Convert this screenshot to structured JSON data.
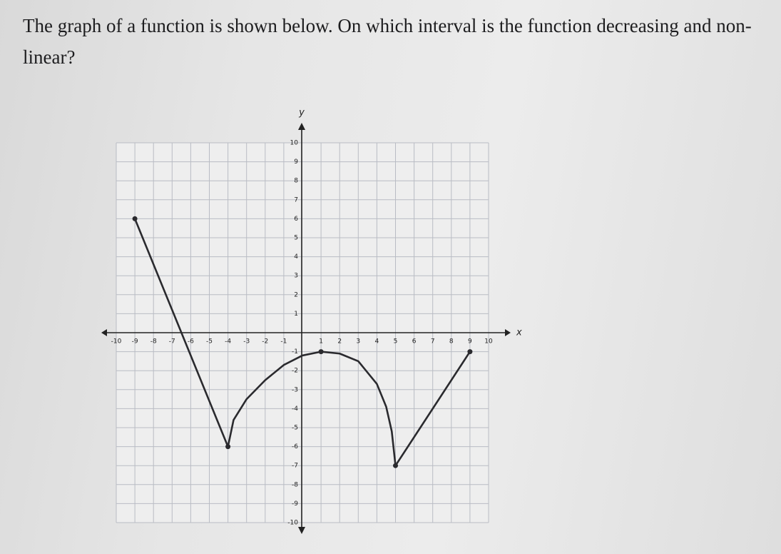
{
  "question": "The graph of a function is shown below. On which interval is the function decreasing and non-linear?",
  "chart_data": {
    "type": "line",
    "x_label": "x",
    "y_label": "y",
    "xlim": [
      -10,
      10
    ],
    "ylim": [
      -10,
      10
    ],
    "xticks": [
      -10,
      -9,
      -8,
      -7,
      -6,
      -5,
      -4,
      -3,
      -2,
      -1,
      1,
      2,
      3,
      4,
      5,
      6,
      7,
      8,
      9,
      10
    ],
    "yticks": [
      -10,
      -9,
      -8,
      -7,
      -6,
      -5,
      -4,
      -3,
      -2,
      -1,
      1,
      2,
      3,
      4,
      5,
      6,
      7,
      8,
      9,
      10
    ],
    "grid": true,
    "series": [
      {
        "color": "#2a2a2e",
        "x": [
          -9,
          -4,
          -3.7,
          -3,
          -2,
          -1,
          0,
          1,
          2,
          3,
          4,
          4.5,
          4.8,
          5,
          9
        ],
        "values": [
          6,
          -6,
          -4.6,
          -3.5,
          -2.5,
          -1.7,
          -1.2,
          -1,
          -1.1,
          -1.5,
          -2.7,
          -3.9,
          -5.2,
          -7,
          -1
        ],
        "endpoints": [
          0,
          1,
          7,
          13,
          14
        ]
      }
    ]
  }
}
